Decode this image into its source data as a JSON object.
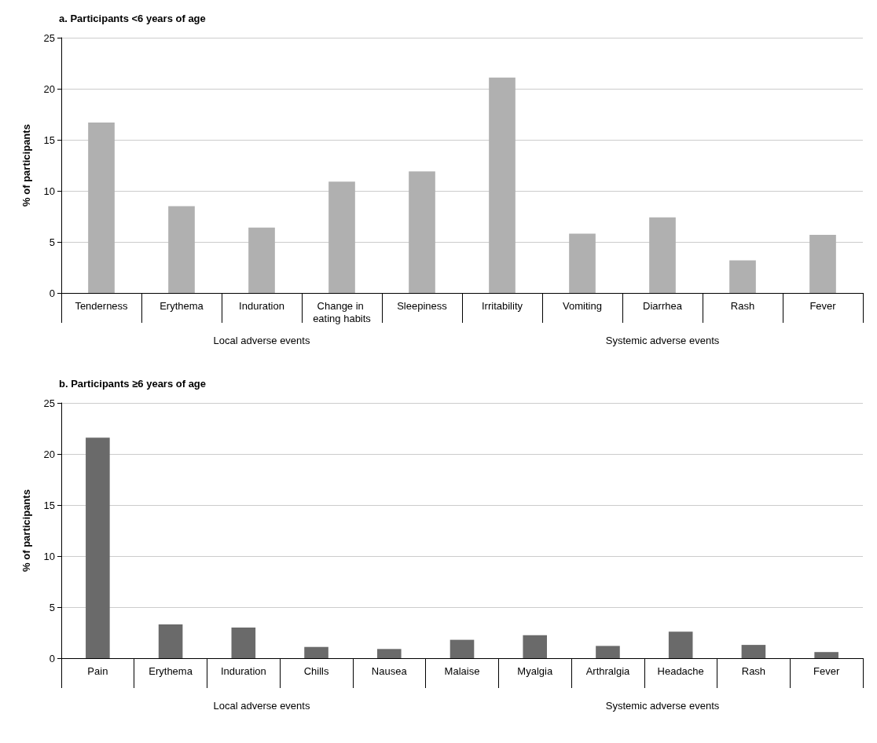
{
  "chart_data": [
    {
      "type": "bar",
      "title": "a. Participants <6 years of age",
      "ylabel": "% of participants",
      "categories": [
        "Tenderness",
        "Erythema",
        "Induration",
        "Change in eating habits",
        "Sleepiness",
        "Irritability",
        "Vomiting",
        "Diarrhea",
        "Rash",
        "Fever"
      ],
      "values": [
        16.7,
        8.5,
        6.4,
        10.9,
        11.9,
        21.1,
        5.8,
        7.4,
        3.2,
        5.7
      ],
      "color": "#b0b0b0",
      "ylim": [
        0,
        25
      ],
      "yticks": [
        0,
        5,
        10,
        15,
        20,
        25
      ],
      "grid": "y",
      "annotations": [
        "Local adverse events",
        "Systemic adverse events"
      ]
    },
    {
      "type": "bar",
      "title": "b. Participants ≥6 years of age",
      "ylabel": "% of participants",
      "categories": [
        "Pain",
        "Erythema",
        "Induration",
        "Chills",
        "Nausea",
        "Malaise",
        "Myalgia",
        "Arthralgia",
        "Headache",
        "Rash",
        "Fever"
      ],
      "values": [
        21.6,
        3.3,
        3.0,
        1.1,
        0.9,
        1.8,
        2.25,
        1.2,
        2.6,
        1.3,
        0.6
      ],
      "color": "#6a6a6a",
      "ylim": [
        0,
        25
      ],
      "yticks": [
        0,
        5,
        10,
        15,
        20,
        25
      ],
      "grid": "y",
      "annotations": [
        "Local adverse events",
        "Systemic adverse events"
      ]
    }
  ]
}
